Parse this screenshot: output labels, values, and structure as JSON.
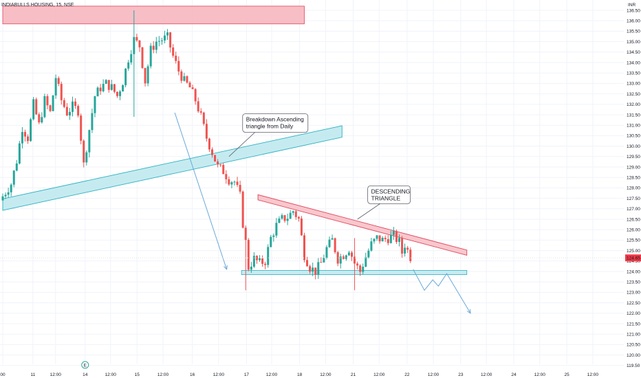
{
  "chart_data": {
    "type": "candlestick",
    "title": "INDIABULLS HOUSING, 15, NSE",
    "currency": "INR",
    "current_price": "124.65",
    "ylim": [
      119.5,
      136.8
    ],
    "y_ticks": [
      "136.50",
      "136.00",
      "135.50",
      "135.00",
      "134.50",
      "134.00",
      "133.50",
      "133.00",
      "132.50",
      "132.00",
      "131.50",
      "131.00",
      "130.50",
      "130.00",
      "129.50",
      "129.00",
      "128.50",
      "128.00",
      "127.50",
      "127.00",
      "126.50",
      "126.00",
      "125.50",
      "125.00",
      "124.50",
      "124.00",
      "123.50",
      "123.00",
      "122.50",
      "122.00",
      "121.50",
      "121.00",
      "120.50",
      "120.00",
      "119.50"
    ],
    "x_ticks": [
      "00",
      "11",
      "12:00",
      "14",
      "12:00",
      "15",
      "12:00",
      "16",
      "12:00",
      "17",
      "12:00",
      "18",
      "12:00",
      "21",
      "12:00",
      "22",
      "12:00",
      "23",
      "12:00",
      "24",
      "12:00",
      "25",
      "12:00"
    ],
    "x_tick_index": [
      0,
      10.8,
      18.9,
      29.5,
      38.6,
      48.1,
      57.4,
      67.9,
      77.3,
      87.3,
      96.3,
      106.3,
      115.6,
      125.5,
      134.8,
      144.8,
      154.2,
      164,
      173.2,
      183,
      192.3,
      202,
      211.3
    ],
    "n_bars": 150,
    "close_path": [
      [
        0,
        127.6
      ],
      [
        3,
        128.2
      ],
      [
        5,
        129.3
      ],
      [
        7,
        130.9
      ],
      [
        9,
        130.4
      ],
      [
        11,
        132.0
      ],
      [
        13,
        131.0
      ],
      [
        15,
        132.2
      ],
      [
        17,
        131.6
      ],
      [
        19,
        133.3
      ],
      [
        21,
        132.2
      ],
      [
        23,
        131.6
      ],
      [
        25,
        131.9
      ],
      [
        27,
        131.7
      ],
      [
        29,
        129.1
      ],
      [
        31,
        130.8
      ],
      [
        33,
        132.4
      ],
      [
        35,
        132.8
      ],
      [
        37,
        133.0
      ],
      [
        39,
        132.8
      ],
      [
        41,
        132.4
      ],
      [
        43,
        133.1
      ],
      [
        45,
        134.2
      ],
      [
        47,
        135.1
      ],
      [
        49,
        134.8
      ],
      [
        51,
        133.1
      ],
      [
        53,
        134.6
      ],
      [
        55,
        135.0
      ],
      [
        57,
        135.1
      ],
      [
        59,
        135.2
      ],
      [
        61,
        134.3
      ],
      [
        63,
        133.6
      ],
      [
        65,
        133.1
      ],
      [
        67,
        132.8
      ],
      [
        69,
        132.2
      ],
      [
        71,
        131.4
      ],
      [
        73,
        130.4
      ],
      [
        75,
        129.7
      ],
      [
        77,
        129.0
      ],
      [
        79,
        128.8
      ],
      [
        81,
        128.4
      ],
      [
        83,
        128.3
      ],
      [
        85,
        127.6
      ],
      [
        86,
        126.3
      ],
      [
        87,
        125.4
      ],
      [
        88,
        124.2
      ],
      [
        90,
        124.6
      ],
      [
        92,
        124.4
      ],
      [
        94,
        124.5
      ],
      [
        96,
        125.6
      ],
      [
        98,
        126.2
      ],
      [
        100,
        126.5
      ],
      [
        102,
        126.6
      ],
      [
        104,
        126.9
      ],
      [
        106,
        126.5
      ],
      [
        108,
        124.8
      ],
      [
        110,
        124.2
      ],
      [
        112,
        124.0
      ],
      [
        114,
        124.4
      ],
      [
        116,
        125.1
      ],
      [
        118,
        125.5
      ],
      [
        120,
        124.6
      ],
      [
        122,
        124.8
      ],
      [
        124,
        125.1
      ],
      [
        126,
        124.4
      ],
      [
        128,
        124.0
      ],
      [
        130,
        124.7
      ],
      [
        132,
        125.3
      ],
      [
        134,
        125.6
      ],
      [
        136,
        125.5
      ],
      [
        138,
        125.6
      ],
      [
        140,
        125.7
      ],
      [
        142,
        125.4
      ],
      [
        143,
        124.9
      ],
      [
        144,
        125.3
      ],
      [
        145,
        125.0
      ],
      [
        146,
        124.7
      ]
    ],
    "spikes": [
      {
        "i": 47,
        "high": 136.5,
        "low": 131.4
      },
      {
        "i": 87,
        "high": 126.2,
        "low": 123.1
      },
      {
        "i": 126,
        "high": 125.6,
        "low": 123.1
      }
    ],
    "zones": [
      {
        "name": "resistance-zone",
        "x1": 0,
        "x2": 108,
        "y1": 135.85,
        "y2": 136.7,
        "fill": "#f7b3bb",
        "stroke": "#e0455a"
      },
      {
        "name": "support-zone",
        "x1": 85.5,
        "x2": 166.2,
        "y1": 123.85,
        "y2": 124.05,
        "fill": "#bfe9ee",
        "stroke": "#2ab0c0"
      }
    ],
    "channels": [
      {
        "name": "ascending-channel",
        "p1": [
          0,
          127.2
        ],
        "p2": [
          121.5,
          130.7
        ],
        "width": 0.55,
        "fill": "#bfe9ee",
        "stroke": "#2ab0c0"
      },
      {
        "name": "descending-resistance-line",
        "p1": [
          91.4,
          127.55
        ],
        "p2": [
          166.2,
          124.9
        ],
        "width": 0.25,
        "fill": "#f7c1c8",
        "stroke": "#e0455a"
      }
    ],
    "arrows": [
      {
        "name": "breakdown-arrow",
        "points": [
          [
            61.6,
            131.6
          ],
          [
            80.2,
            124.1
          ]
        ]
      },
      {
        "name": "projection-arrow",
        "points": [
          [
            147,
            124.1
          ],
          [
            151,
            123.1
          ],
          [
            154,
            123.6
          ],
          [
            156,
            123.3
          ],
          [
            159,
            123.9
          ],
          [
            167.5,
            122.0
          ]
        ]
      }
    ],
    "callouts": [
      {
        "name": "breakdown-callout",
        "lines": [
          "Breakdown Ascending",
          "triangle from Daily"
        ],
        "box_x": 85.9,
        "box_y": 131.55,
        "anchor": [
          81,
          129.5
        ],
        "box_w": 95,
        "box_h": 27
      },
      {
        "name": "descending-callout",
        "lines": [
          "DESCENDING",
          "TRIANGLE"
        ],
        "box_x": 130.7,
        "box_y": 128.1,
        "anchor": [
          127,
          126.5
        ],
        "box_w": 62,
        "box_h": 26
      }
    ],
    "colors": {
      "up": "#26a69a",
      "down": "#ef5350",
      "grid": "#f0f3fa",
      "price_line": "#e0e3eb",
      "arrow": "#6aa8d8",
      "price_badge": "#f23645",
      "text": "#131722"
    },
    "badge_icon": "E"
  }
}
